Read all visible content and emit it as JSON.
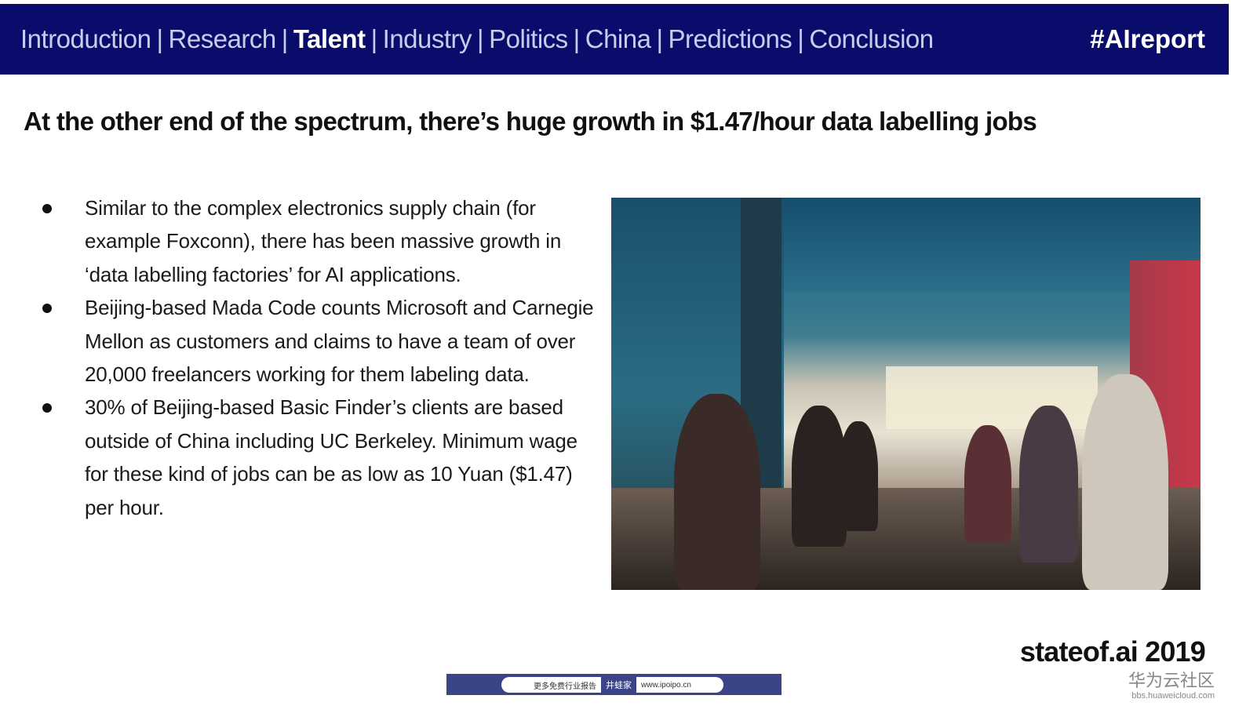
{
  "nav": {
    "items": [
      {
        "label": "Introduction",
        "active": false
      },
      {
        "label": "Research",
        "active": false
      },
      {
        "label": "Talent",
        "active": true
      },
      {
        "label": "Industry",
        "active": false
      },
      {
        "label": "Politics",
        "active": false
      },
      {
        "label": "China",
        "active": false
      },
      {
        "label": "Predictions",
        "active": false
      },
      {
        "label": "Conclusion",
        "active": false
      }
    ],
    "separator": "|",
    "hashtag": "#AIreport"
  },
  "slide": {
    "title": "At the other end of the spectrum, there’s huge growth in $1.47/hour data labelling jobs",
    "bullets": [
      "Similar to the complex electronics supply chain (for example Foxconn), there has been massive growth in ‘data labelling factories’ for AI applications.",
      "Beijing-based Mada Code counts Microsoft and Carnegie Mellon as customers and claims to have a team of over 20,000 freelancers working for them labeling data.",
      "30% of Beijing-based Basic Finder’s clients are based outside of China including UC Berkeley. Minimum wage for these kind of jobs can be as low as 10 Yuan ($1.47) per hour."
    ],
    "photo_alt": "data labelling factory workers at computers",
    "brand": "stateof.ai 2019"
  },
  "banner": {
    "left": "更多免费行业报告",
    "middle": "井蛙家",
    "right": "www.ipoipo.cn"
  },
  "watermark": {
    "cn": "华为云社区",
    "url": "bbs.huaweicloud.com"
  },
  "colors": {
    "nav_bg": "#0a0c6b",
    "nav_text": "#c9cdec",
    "active_text": "#ffffff"
  }
}
